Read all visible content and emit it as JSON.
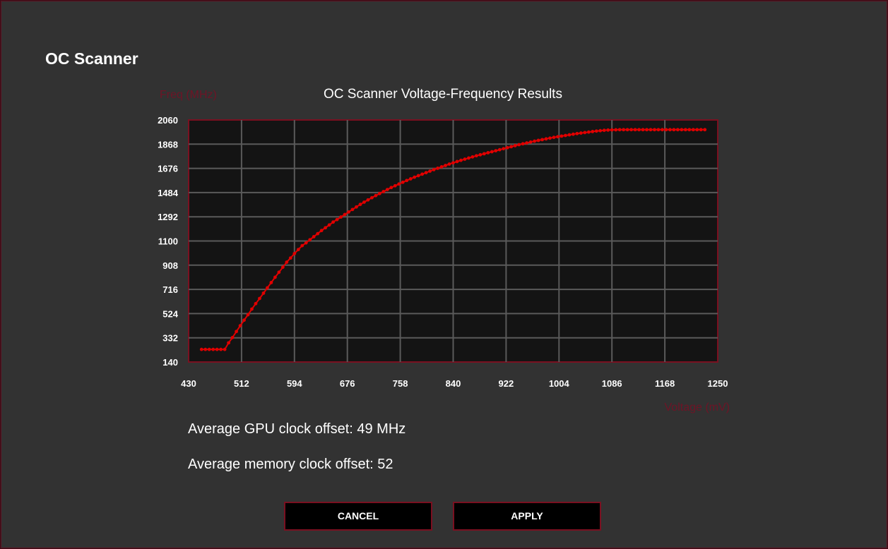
{
  "window": {
    "title": "OC Scanner"
  },
  "stats": {
    "gpu_offset": "Average GPU clock offset:  49 MHz",
    "memory_offset": "Average memory clock offset:  52"
  },
  "buttons": {
    "cancel": "CANCEL",
    "apply": "APPLY"
  },
  "colors": {
    "accent": "#e00000",
    "border": "#7a1020",
    "plot_bg": "#141414",
    "axis_label": "#6e1426"
  },
  "chart_data": {
    "type": "line",
    "title": "OC Scanner Voltage-Frequency Results",
    "xlabel": "Voltage (mV)",
    "ylabel": "Freq (MHz)",
    "xlim": [
      430,
      1250
    ],
    "ylim": [
      140,
      2060
    ],
    "xticks": [
      "430",
      "512",
      "594",
      "676",
      "758",
      "840",
      "922",
      "1004",
      "1086",
      "1168",
      "1250"
    ],
    "yticks": [
      "2060",
      "1868",
      "1676",
      "1484",
      "1292",
      "1100",
      "908",
      "716",
      "524",
      "332",
      "140"
    ],
    "grid": true,
    "series": [
      {
        "x": [
          450,
          456,
          462,
          468,
          474,
          480,
          486,
          492,
          498,
          504,
          510,
          516,
          522,
          528,
          534,
          540,
          546,
          552,
          558,
          564,
          570,
          576,
          582,
          588,
          594,
          600,
          606,
          612,
          618,
          624,
          630,
          636,
          642,
          648,
          654,
          660,
          666,
          672,
          678,
          684,
          690,
          696,
          702,
          708,
          714,
          720,
          726,
          732,
          738,
          744,
          750,
          756,
          762,
          768,
          774,
          780,
          786,
          792,
          798,
          804,
          810,
          816,
          822,
          828,
          834,
          840,
          846,
          852,
          858,
          864,
          870,
          876,
          882,
          888,
          894,
          900,
          906,
          912,
          918,
          924,
          930,
          936,
          942,
          948,
          954,
          960,
          966,
          972,
          978,
          984,
          990,
          996,
          1002,
          1008,
          1014,
          1020,
          1026,
          1032,
          1038,
          1044,
          1050,
          1056,
          1062,
          1068,
          1074,
          1080,
          1086,
          1092,
          1098,
          1104,
          1110,
          1116,
          1122,
          1128,
          1134,
          1140,
          1146,
          1152,
          1158,
          1164,
          1170,
          1176,
          1182,
          1188,
          1194,
          1200,
          1206,
          1212,
          1218,
          1224,
          1230
        ],
        "y": [
          240,
          240,
          240,
          240,
          240,
          240,
          240,
          292,
          334,
          382,
          428,
          472,
          515,
          560,
          603,
          644,
          686,
          728,
          770,
          812,
          852,
          892,
          932,
          965,
          1000,
          1032,
          1063,
          1085,
          1110,
          1134,
          1158,
          1183,
          1205,
          1227,
          1250,
          1270,
          1290,
          1310,
          1330,
          1350,
          1370,
          1390,
          1408,
          1426,
          1443,
          1460,
          1476,
          1492,
          1508,
          1524,
          1538,
          1552,
          1566,
          1580,
          1593,
          1606,
          1618,
          1630,
          1642,
          1654,
          1666,
          1677,
          1688,
          1699,
          1710,
          1720,
          1730,
          1740,
          1749,
          1758,
          1767,
          1776,
          1784,
          1792,
          1800,
          1808,
          1816,
          1824,
          1832,
          1840,
          1848,
          1856,
          1864,
          1871,
          1878,
          1885,
          1892,
          1898,
          1904,
          1910,
          1916,
          1922,
          1927,
          1932,
          1937,
          1942,
          1947,
          1952,
          1956,
          1960,
          1964,
          1968,
          1972,
          1975,
          1978,
          1980,
          1981,
          1982,
          1983,
          1983,
          1983,
          1983,
          1983,
          1983,
          1983,
          1983,
          1983,
          1983,
          1983,
          1983,
          1983,
          1983,
          1983,
          1983,
          1983,
          1983,
          1983,
          1983,
          1983,
          1983,
          1983
        ]
      }
    ]
  }
}
